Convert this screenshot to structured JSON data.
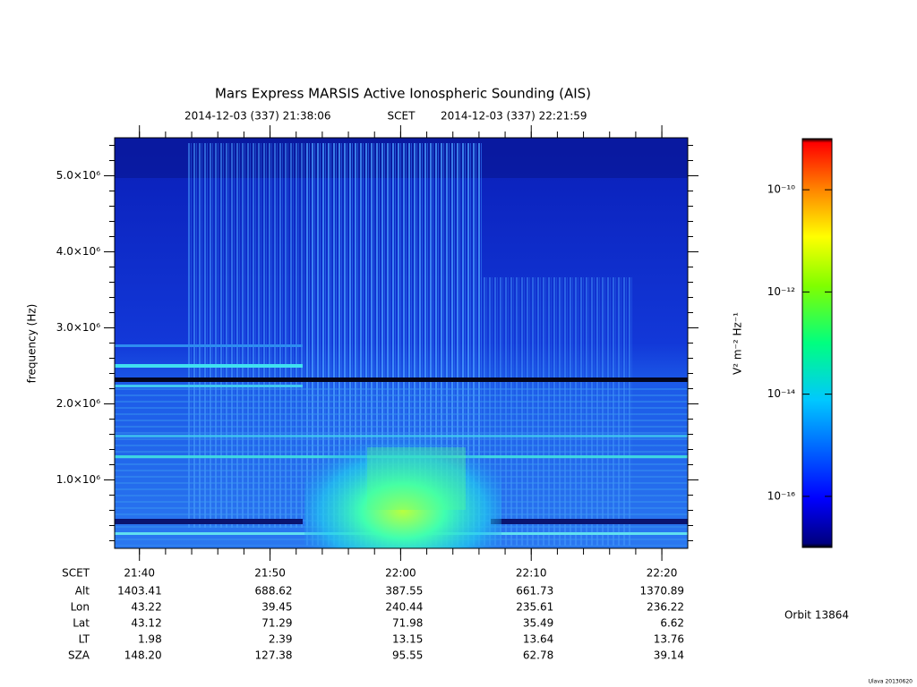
{
  "chart_data": {
    "type": "spectrogram",
    "title": "Mars Express MARSIS Active Ionospheric Sounding (AIS)",
    "start": "2014-12-03 (337) 21:38:06",
    "time_label": "SCET",
    "end": "2014-12-03 (337) 22:21:59",
    "ylabel": "frequency (Hz)",
    "ylim": [
      100000,
      5500000
    ],
    "yticks": [
      {
        "value": 1000000,
        "label": "1.0×10⁶"
      },
      {
        "value": 2000000,
        "label": "2.0×10⁶"
      },
      {
        "value": 3000000,
        "label": "3.0×10⁶"
      },
      {
        "value": 4000000,
        "label": "4.0×10⁶"
      },
      {
        "value": 5000000,
        "label": "5.0×10⁶"
      }
    ],
    "xticks": [
      "21:40",
      "21:50",
      "22:00",
      "22:10",
      "22:20"
    ],
    "colorbar": {
      "label": "V² m⁻² Hz⁻¹",
      "log": true,
      "lim": [
        1e-17,
        1e-09
      ],
      "ticks": [
        {
          "value": 1e-10,
          "label": "10⁻¹⁰"
        },
        {
          "value": 1e-12,
          "label": "10⁻¹²"
        },
        {
          "value": 1e-14,
          "label": "10⁻¹⁴"
        },
        {
          "value": 1e-16,
          "label": "10⁻¹⁶"
        }
      ]
    }
  },
  "ephemeris": {
    "time_label": "SCET",
    "rows": [
      {
        "label": "Alt",
        "values": [
          "1403.41",
          "688.62",
          "387.55",
          "661.73",
          "1370.89"
        ]
      },
      {
        "label": "Lon",
        "values": [
          "43.22",
          "39.45",
          "240.44",
          "235.61",
          "236.22"
        ]
      },
      {
        "label": "Lat",
        "values": [
          "43.12",
          "71.29",
          "71.98",
          "35.49",
          "6.62"
        ]
      },
      {
        "label": "LT",
        "values": [
          "1.98",
          "2.39",
          "13.15",
          "13.64",
          "13.76"
        ]
      },
      {
        "label": "SZA",
        "values": [
          "148.20",
          "127.38",
          "95.55",
          "62.78",
          "39.14"
        ]
      }
    ]
  },
  "orbit": "Orbit 13864",
  "footer": "Ulava 20130620"
}
